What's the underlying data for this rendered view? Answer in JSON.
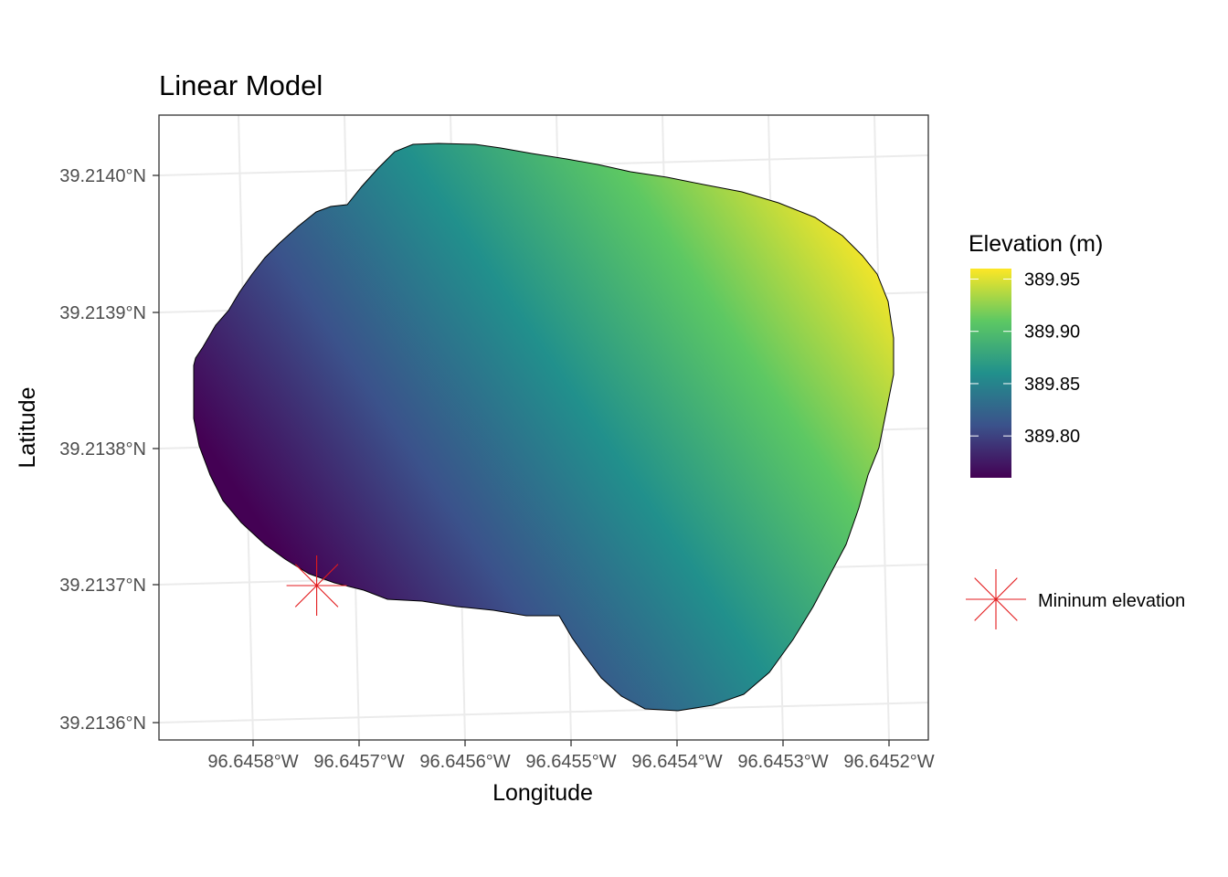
{
  "chart_data": {
    "type": "heatmap",
    "title": "Linear Model",
    "xlabel": "Longitude",
    "ylabel": "Latitude",
    "x_ticks": [
      "96.6458°W",
      "96.6457°W",
      "96.6456°W",
      "96.6455°W",
      "96.6454°W",
      "96.6453°W",
      "96.6452°W"
    ],
    "y_ticks": [
      "39.2136°N",
      "39.2137°N",
      "39.2138°N",
      "39.2139°N",
      "39.2140°N"
    ],
    "xlim": [
      -96.64587,
      -96.64519
    ],
    "ylim": [
      39.21358,
      39.21404
    ],
    "grid": true,
    "colorbar": {
      "title": "Elevation (m)",
      "min": 389.76,
      "max": 389.96,
      "ticks": [
        "389.95",
        "389.90",
        "389.85",
        "389.80"
      ],
      "tick_values": [
        389.95,
        389.9,
        389.85,
        389.8
      ],
      "palette": [
        "#440154",
        "#3b528b",
        "#21908c",
        "#5dc863",
        "#fde725"
      ],
      "placement": "right"
    },
    "surface": {
      "description_free": true,
      "low_corner_value": 389.76,
      "high_corner_value": 389.96
    },
    "points": [
      {
        "name": "Mininum elevation",
        "lon": -96.64574,
        "lat": 39.2137,
        "color": "#e31a1c",
        "shape": "asterisk"
      }
    ],
    "legend_points": [
      {
        "label": "Mininum elevation",
        "color": "#e31a1c"
      }
    ]
  }
}
